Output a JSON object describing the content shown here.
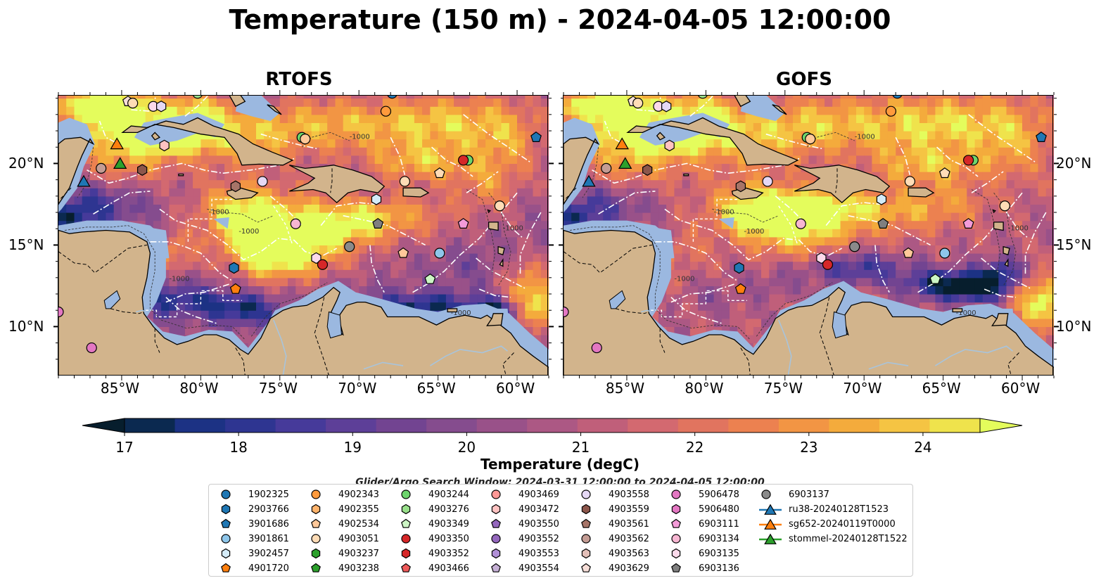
{
  "title": "Temperature (150 m) - 2024-04-05 12:00:00",
  "panels": [
    {
      "title": "RTOFS",
      "variant": "rtofs"
    },
    {
      "title": "GOFS",
      "variant": "gofs"
    }
  ],
  "axes": {
    "lon_ticks": [
      "85°W",
      "80°W",
      "75°W",
      "70°W",
      "65°W",
      "60°W"
    ],
    "lat_ticks": [
      "20°N",
      "15°N",
      "10°N"
    ],
    "extent": {
      "lon_min": -89,
      "lon_max": -58,
      "lat_min": 7,
      "lat_max": 24.2
    }
  },
  "colors": {
    "land": "#d2b48c",
    "shelf": "#9bb8e0",
    "eez_line": "#ffffff",
    "coast": "#000000"
  },
  "colorbar": {
    "label": "Temperature (degC)",
    "ticks": [
      "17",
      "18",
      "19",
      "20",
      "21",
      "22",
      "23",
      "24"
    ],
    "min": 16.5,
    "max": 24.5,
    "colors": [
      "#071e2d",
      "#0b2950",
      "#1c3284",
      "#2e3591",
      "#463a9a",
      "#5d3f98",
      "#724491",
      "#854c8e",
      "#995189",
      "#ac5884",
      "#c05f7a",
      "#d36970",
      "#e1745f",
      "#ec8150",
      "#f29544",
      "#f4ab3c",
      "#f5c443",
      "#efe34c",
      "#e4fc5c"
    ]
  },
  "search_window": "Glider/Argo Search Window: 2024-03-31 12:00:00 to 2024-04-05 12:00:00",
  "legend": [
    {
      "label": "1902325",
      "shape": "circle",
      "color": "#1f77b4"
    },
    {
      "label": "2903766",
      "shape": "hexagon",
      "color": "#1f77b4"
    },
    {
      "label": "3901686",
      "shape": "pentagon",
      "color": "#1f77b4"
    },
    {
      "label": "3901861",
      "shape": "circle",
      "color": "#8ec6ea"
    },
    {
      "label": "3902457",
      "shape": "hexagon",
      "color": "#d4ebf8"
    },
    {
      "label": "4901720",
      "shape": "pentagon",
      "color": "#ff7f0e"
    },
    {
      "label": "4902343",
      "shape": "circle",
      "color": "#ff9a3c"
    },
    {
      "label": "4902355",
      "shape": "hexagon",
      "color": "#ffb36b"
    },
    {
      "label": "4902534",
      "shape": "pentagon",
      "color": "#ffc899"
    },
    {
      "label": "4903051",
      "shape": "circle",
      "color": "#ffdcb6"
    },
    {
      "label": "4903237",
      "shape": "hexagon",
      "color": "#2ca02c"
    },
    {
      "label": "4903238",
      "shape": "pentagon",
      "color": "#2ca02c"
    },
    {
      "label": "4903244",
      "shape": "circle",
      "color": "#6dd56d"
    },
    {
      "label": "4903276",
      "shape": "hexagon",
      "color": "#98df8a"
    },
    {
      "label": "4903349",
      "shape": "pentagon",
      "color": "#ccf5c4"
    },
    {
      "label": "4903350",
      "shape": "circle",
      "color": "#d62728"
    },
    {
      "label": "4903352",
      "shape": "hexagon",
      "color": "#d62728"
    },
    {
      "label": "4903466",
      "shape": "pentagon",
      "color": "#ee5a5a"
    },
    {
      "label": "4903469",
      "shape": "circle",
      "color": "#ff9896"
    },
    {
      "label": "4903472",
      "shape": "hexagon",
      "color": "#ffc2c1"
    },
    {
      "label": "4903550",
      "shape": "pentagon",
      "color": "#9467bd"
    },
    {
      "label": "4903552",
      "shape": "circle",
      "color": "#9467bd"
    },
    {
      "label": "4903553",
      "shape": "hexagon",
      "color": "#b08fd6"
    },
    {
      "label": "4903554",
      "shape": "pentagon",
      "color": "#c5b0d5"
    },
    {
      "label": "4903558",
      "shape": "circle",
      "color": "#e5d8f5"
    },
    {
      "label": "4903559",
      "shape": "hexagon",
      "color": "#8c564b"
    },
    {
      "label": "4903561",
      "shape": "pentagon",
      "color": "#a67468"
    },
    {
      "label": "4903562",
      "shape": "circle",
      "color": "#c49c94"
    },
    {
      "label": "4903563",
      "shape": "hexagon",
      "color": "#e3bfb8"
    },
    {
      "label": "4903629",
      "shape": "pentagon",
      "color": "#f7ded8"
    },
    {
      "label": "5906478",
      "shape": "circle",
      "color": "#e377c2"
    },
    {
      "label": "5906480",
      "shape": "hexagon",
      "color": "#e377c2"
    },
    {
      "label": "6903111",
      "shape": "pentagon",
      "color": "#f39bd8"
    },
    {
      "label": "6903134",
      "shape": "circle",
      "color": "#f7b6d2"
    },
    {
      "label": "6903135",
      "shape": "hexagon",
      "color": "#fbd9ea"
    },
    {
      "label": "6903136",
      "shape": "pentagon",
      "color": "#7f7f7f"
    },
    {
      "label": "6903137",
      "shape": "circle",
      "color": "#8a8a8a"
    },
    {
      "label": "ru38-20240128T1523",
      "shape": "triangle-line",
      "color": "#1f77b4"
    },
    {
      "label": "sg652-20240119T0000",
      "shape": "triangle-line",
      "color": "#ff7f0e"
    },
    {
      "label": "stommel-20240128T1522",
      "shape": "triangle-line",
      "color": "#2ca02c"
    }
  ],
  "markers": [
    {
      "lon": -84.6,
      "lat": 23.8,
      "shape": "pentagon",
      "color": "#f7ded8"
    },
    {
      "lon": -84.3,
      "lat": 23.7,
      "shape": "circle",
      "color": "#ffdcb6"
    },
    {
      "lon": -83.0,
      "lat": 23.5,
      "shape": "circle",
      "color": "#fbd9ea"
    },
    {
      "lon": -82.5,
      "lat": 23.5,
      "shape": "hexagon",
      "color": "#e5d8f5"
    },
    {
      "lon": -82.3,
      "lat": 21.1,
      "shape": "hexagon",
      "color": "#ffc2c1"
    },
    {
      "lon": -80.2,
      "lat": 24.3,
      "shape": "circle",
      "color": "#98df8a"
    },
    {
      "lon": -67.9,
      "lat": 24.3,
      "shape": "circle",
      "color": "#1f77b4"
    },
    {
      "lon": -68.3,
      "lat": 23.2,
      "shape": "circle",
      "color": "#ff9a3c"
    },
    {
      "lon": -73.6,
      "lat": 21.6,
      "shape": "circle",
      "color": "#6dd56d"
    },
    {
      "lon": -73.4,
      "lat": 21.5,
      "shape": "circle",
      "color": "#ffc899"
    },
    {
      "lon": -58.8,
      "lat": 21.6,
      "shape": "pentagon",
      "color": "#1f77b4"
    },
    {
      "lon": -63.1,
      "lat": 20.2,
      "shape": "circle",
      "color": "#6dd56d"
    },
    {
      "lon": -63.4,
      "lat": 20.2,
      "shape": "circle",
      "color": "#d62728"
    },
    {
      "lon": -86.3,
      "lat": 19.7,
      "shape": "circle",
      "color": "#c49c94"
    },
    {
      "lon": -83.7,
      "lat": 19.6,
      "shape": "hexagon",
      "color": "#8c564b"
    },
    {
      "lon": -77.8,
      "lat": 18.6,
      "shape": "hexagon",
      "color": "#a67468"
    },
    {
      "lon": -76.1,
      "lat": 18.9,
      "shape": "circle",
      "color": "#e5d8f5"
    },
    {
      "lon": -67.1,
      "lat": 18.9,
      "shape": "circle",
      "color": "#ffdcb6"
    },
    {
      "lon": -64.9,
      "lat": 19.4,
      "shape": "pentagon",
      "color": "#ffdcb6"
    },
    {
      "lon": -68.9,
      "lat": 17.8,
      "shape": "hexagon",
      "color": "#d4ebf8"
    },
    {
      "lon": -61.1,
      "lat": 17.4,
      "shape": "circle",
      "color": "#ffdcb6"
    },
    {
      "lon": -74.0,
      "lat": 16.3,
      "shape": "circle",
      "color": "#f7b6d2"
    },
    {
      "lon": -68.8,
      "lat": 16.3,
      "shape": "pentagon",
      "color": "#7f7f7f"
    },
    {
      "lon": -63.4,
      "lat": 16.3,
      "shape": "pentagon",
      "color": "#f39bd8"
    },
    {
      "lon": -70.6,
      "lat": 14.9,
      "shape": "circle",
      "color": "#8a8a8a"
    },
    {
      "lon": -67.2,
      "lat": 14.5,
      "shape": "pentagon",
      "color": "#ffc899"
    },
    {
      "lon": -64.9,
      "lat": 14.5,
      "shape": "circle",
      "color": "#8ec6ea"
    },
    {
      "lon": -72.7,
      "lat": 14.2,
      "shape": "hexagon",
      "color": "#fbd9ea"
    },
    {
      "lon": -72.3,
      "lat": 13.8,
      "shape": "circle",
      "color": "#d62728"
    },
    {
      "lon": -77.9,
      "lat": 13.6,
      "shape": "hexagon",
      "color": "#1f77b4"
    },
    {
      "lon": -65.5,
      "lat": 12.9,
      "shape": "pentagon",
      "color": "#ccf5c4"
    },
    {
      "lon": -77.8,
      "lat": 12.3,
      "shape": "pentagon",
      "color": "#ff7f0e"
    },
    {
      "lon": -86.9,
      "lat": 8.7,
      "shape": "circle",
      "color": "#e377c2"
    },
    {
      "lon": -89.0,
      "lat": 10.9,
      "shape": "circle",
      "color": "#e377c2"
    },
    {
      "lon": -85.3,
      "lat": 21.2,
      "shape": "triangle",
      "color": "#ff7f0e"
    },
    {
      "lon": -85.1,
      "lat": 20.0,
      "shape": "triangle",
      "color": "#2ca02c"
    },
    {
      "lon": -87.4,
      "lat": 18.9,
      "shape": "triangle",
      "color": "#1f77b4"
    }
  ]
}
